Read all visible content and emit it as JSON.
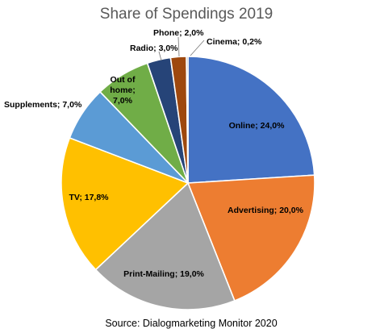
{
  "chart_data": {
    "type": "pie",
    "title": "Share of  Spendings 2019",
    "source": "Source: Dialogmarketing Monitor 2020",
    "slices": [
      {
        "name": "Online",
        "value": 24.0,
        "label_lines": [
          "Online; 24,0%"
        ],
        "color": "#4472C4"
      },
      {
        "name": "Advertising",
        "value": 20.0,
        "label_lines": [
          "Advertising; 20,0%"
        ],
        "color": "#ED7D31"
      },
      {
        "name": "Print-Mailing",
        "value": 19.0,
        "label_lines": [
          "Print-Mailing; 19,0%"
        ],
        "color": "#A5A5A5"
      },
      {
        "name": "TV",
        "value": 17.8,
        "label_lines": [
          "TV; 17,8%"
        ],
        "color": "#FFC000"
      },
      {
        "name": "Supplements",
        "value": 7.0,
        "label_lines": [
          "Supplements; 7,0%"
        ],
        "color": "#5B9BD5"
      },
      {
        "name": "Out of home",
        "value": 7.0,
        "label_lines": [
          "Out of",
          "home;",
          "7,0%"
        ],
        "color": "#70AD47"
      },
      {
        "name": "Radio",
        "value": 3.0,
        "label_lines": [
          "Radio; 3,0%"
        ],
        "color": "#264478"
      },
      {
        "name": "Phone",
        "value": 2.0,
        "label_lines": [
          "Phone; 2,0%"
        ],
        "color": "#9E480E"
      },
      {
        "name": "Cinema",
        "value": 0.2,
        "label_lines": [
          "Cinema; 0,2%"
        ],
        "color": "#636363"
      }
    ]
  }
}
